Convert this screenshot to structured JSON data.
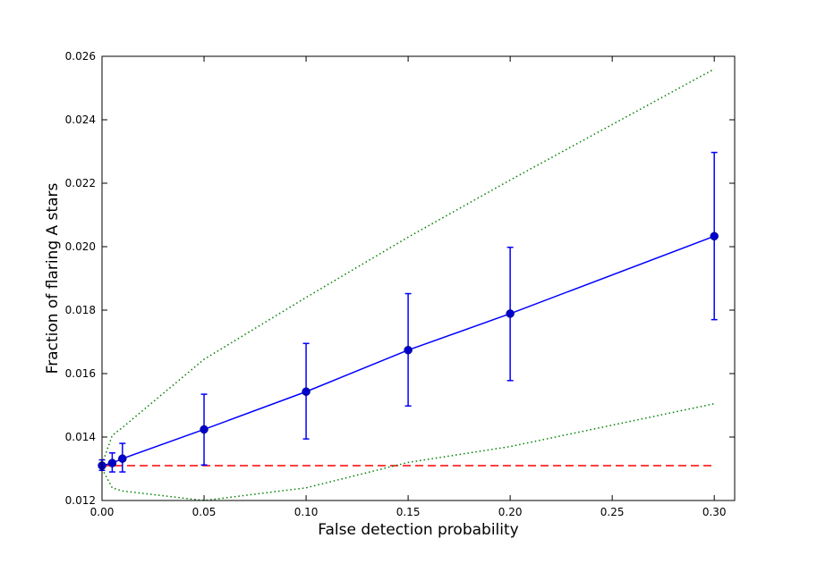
{
  "chart_data": {
    "type": "line",
    "title": "",
    "xlabel": "False detection probability",
    "ylabel": "Fraction of flaring A stars",
    "xlim": [
      0.0,
      0.31
    ],
    "ylim": [
      0.012,
      0.026
    ],
    "xticks": [
      0.0,
      0.05,
      0.1,
      0.15,
      0.2,
      0.25,
      0.3
    ],
    "xtick_labels": [
      "0.00",
      "0.05",
      "0.10",
      "0.15",
      "0.20",
      "0.25",
      "0.30"
    ],
    "yticks": [
      0.012,
      0.014,
      0.016,
      0.018,
      0.02,
      0.022,
      0.024,
      0.026
    ],
    "ytick_labels": [
      "0.012",
      "0.014",
      "0.016",
      "0.018",
      "0.020",
      "0.022",
      "0.024",
      "0.026"
    ],
    "grid": false,
    "legend": false,
    "series": [
      {
        "style": "line-markers-errorbars",
        "color": "#0000ff",
        "marker_color": "#0000cc",
        "x": [
          0.0,
          0.005,
          0.01,
          0.05,
          0.1,
          0.15,
          0.2,
          0.3
        ],
        "y": [
          0.0131,
          0.01318,
          0.01332,
          0.01424,
          0.01543,
          0.01674,
          0.01789,
          0.02033
        ],
        "y_lower": [
          0.01295,
          0.0129,
          0.0129,
          0.01312,
          0.01394,
          0.01498,
          0.01578,
          0.0177
        ],
        "y_upper": [
          0.01328,
          0.0135,
          0.0138,
          0.01535,
          0.01695,
          0.01852,
          0.01998,
          0.02297
        ]
      },
      {
        "style": "dashed",
        "color": "#ff0000",
        "x": [
          0.0,
          0.3
        ],
        "y": [
          0.0131,
          0.0131
        ]
      },
      {
        "style": "dotted",
        "color": "#008000",
        "x": [
          0.0,
          0.005,
          0.01,
          0.05,
          0.1,
          0.15,
          0.2,
          0.3
        ],
        "y": [
          0.01315,
          0.01405,
          0.0143,
          0.01645,
          0.0184,
          0.0203,
          0.0221,
          0.0256
        ]
      },
      {
        "style": "dotted",
        "color": "#008000",
        "x": [
          0.0,
          0.005,
          0.01,
          0.05,
          0.1,
          0.15,
          0.2,
          0.3
        ],
        "y": [
          0.013,
          0.0124,
          0.0123,
          0.012,
          0.0124,
          0.0132,
          0.0137,
          0.01505
        ]
      }
    ]
  }
}
